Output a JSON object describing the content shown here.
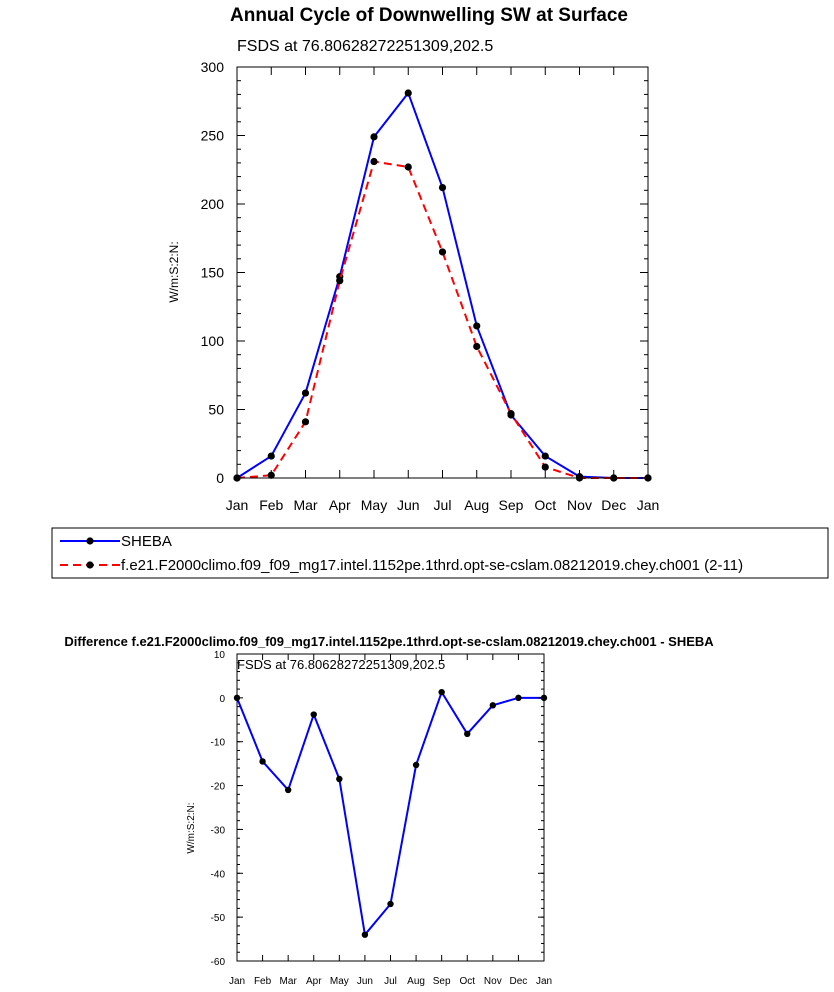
{
  "chart_data": [
    {
      "type": "line",
      "title": "Annual Cycle of Downwelling SW at Surface",
      "subtitle": "FSDS at 76.80628272251309,202.5",
      "xlabel": "",
      "ylabel": "W/m:S:2:N:",
      "categories": [
        "Jan",
        "Feb",
        "Mar",
        "Apr",
        "May",
        "Jun",
        "Jul",
        "Aug",
        "Sep",
        "Oct",
        "Nov",
        "Dec",
        "Jan"
      ],
      "ylim": [
        0,
        300
      ],
      "yticks": [
        0,
        50,
        100,
        150,
        200,
        250,
        300
      ],
      "series": [
        {
          "name": "SHEBA",
          "color": "#0000ff",
          "dash": "solid",
          "values": [
            0,
            16,
            62,
            147,
            249,
            281,
            212,
            111,
            46,
            16,
            1,
            0,
            0
          ]
        },
        {
          "name": "f.e21.F2000climo.f09_f09_mg17.intel.1152pe.1thrd.opt-se-cslam.08212019.chey.ch001 (2-11)",
          "color": "#ff0000",
          "dash": "dashed",
          "values": [
            0,
            2,
            41,
            144,
            231,
            227,
            165,
            96,
            47,
            8,
            0,
            0,
            0
          ]
        }
      ],
      "legend": "below"
    },
    {
      "type": "line",
      "title": "Difference f.e21.F2000climo.f09_f09_mg17.intel.1152pe.1thrd.opt-se-cslam.08212019.chey.ch001 - SHEBA",
      "subtitle": "FSDS at 76.80628272251309,202.5",
      "xlabel": "",
      "ylabel": "W/m:S:2:N:",
      "categories": [
        "Jan",
        "Feb",
        "Mar",
        "Apr",
        "May",
        "Jun",
        "Jul",
        "Aug",
        "Sep",
        "Oct",
        "Nov",
        "Dec",
        "Jan"
      ],
      "ylim": [
        -60,
        10
      ],
      "yticks": [
        -60,
        -50,
        -40,
        -30,
        -20,
        -10,
        0,
        10
      ],
      "series": [
        {
          "name": "Difference",
          "color": "#0000ff",
          "dash": "solid",
          "values": [
            0,
            -14.5,
            -21,
            -3.8,
            -18.5,
            -54,
            -47,
            -15.3,
            1.3,
            -8.2,
            -1.7,
            0,
            0
          ]
        }
      ]
    }
  ]
}
